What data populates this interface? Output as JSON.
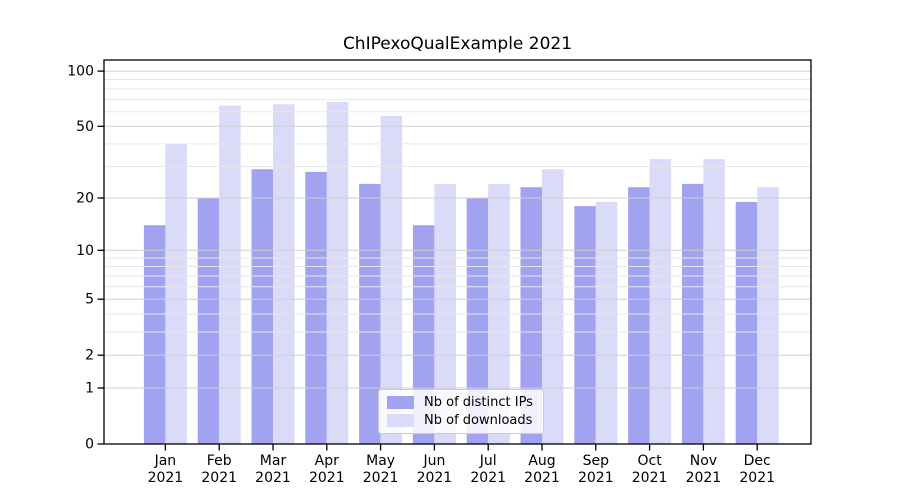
{
  "figure": {
    "background": "#ffffff",
    "title": "ChIPexoQualExample 2021"
  },
  "chart_data": {
    "type": "bar",
    "title": "ChIPexoQualExample 2021",
    "categories": [
      "Jan",
      "Feb",
      "Mar",
      "Apr",
      "May",
      "Jun",
      "Jul",
      "Aug",
      "Sep",
      "Oct",
      "Nov",
      "Dec"
    ],
    "xlabel_year": "2021",
    "series": [
      {
        "name": "Nb of distinct IPs",
        "color": "#a2a3f0",
        "values": [
          14,
          20,
          29,
          28,
          24,
          14,
          20,
          23,
          18,
          23,
          24,
          19
        ]
      },
      {
        "name": "Nb of downloads",
        "color": "#dadbf8",
        "values": [
          40,
          65,
          66,
          68,
          57,
          24,
          24,
          29,
          19,
          33,
          33,
          23
        ]
      }
    ],
    "xlabel": "",
    "ylabel": "",
    "yscale": "log1p",
    "ylim": [
      0,
      100
    ],
    "ytick_labels": [
      "100",
      "50",
      "20",
      "10",
      "5",
      "2",
      "1",
      "0"
    ],
    "ytick_values": [
      100,
      50,
      20,
      10,
      5,
      2,
      1,
      0
    ],
    "y_minor_gridlines": [
      3,
      4,
      6,
      7,
      8,
      9,
      30,
      40,
      60,
      70,
      80,
      90
    ],
    "grid": true,
    "legend_position": "lower center"
  },
  "colors": {
    "axis": "#000000",
    "major_grid": "#cfcfcf",
    "minor_grid": "#e7e7e7",
    "text": "#000000"
  }
}
